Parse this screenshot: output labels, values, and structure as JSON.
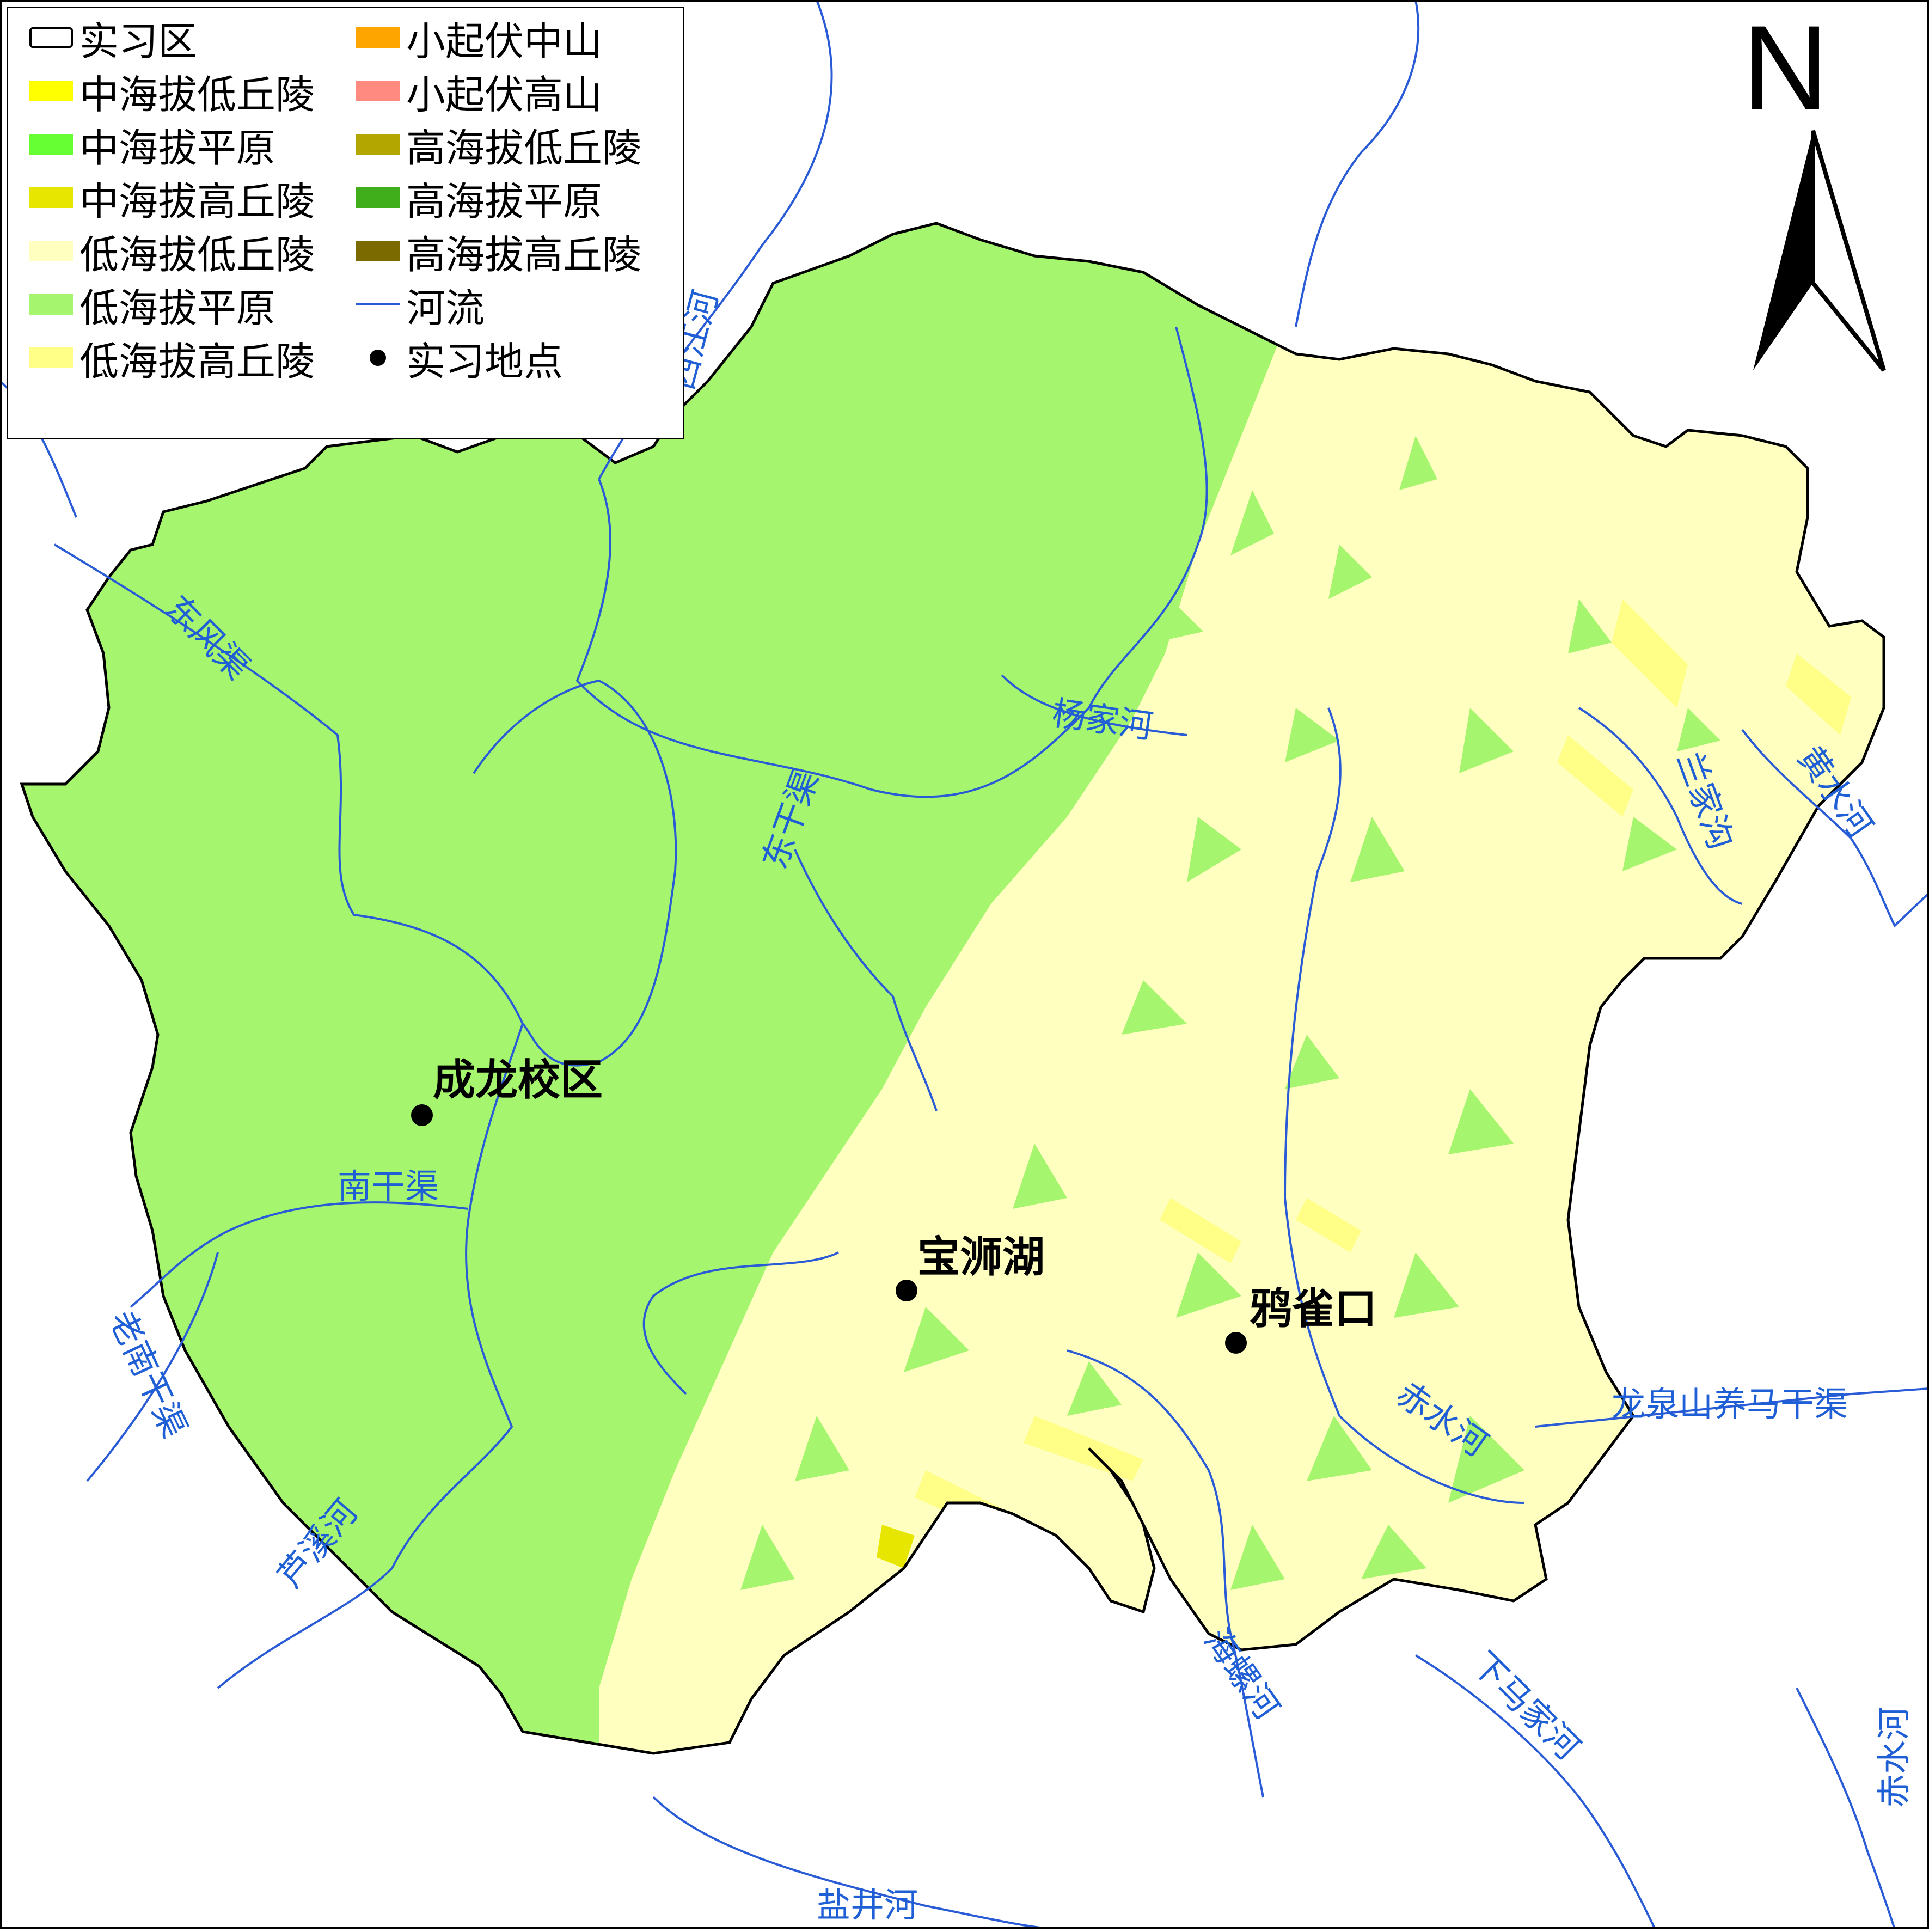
{
  "legend": {
    "items": [
      {
        "label": "实习区",
        "kind": "outline",
        "color": "#ffffff"
      },
      {
        "label": "中海拔低丘陵",
        "kind": "fill",
        "color": "#ffff00"
      },
      {
        "label": "中海拔平原",
        "kind": "fill",
        "color": "#66ff33"
      },
      {
        "label": "中海拔高丘陵",
        "kind": "fill",
        "color": "#e6e600"
      },
      {
        "label": "低海拔低丘陵",
        "kind": "fill",
        "color": "#ffffc0"
      },
      {
        "label": "低海拔平原",
        "kind": "fill",
        "color": "#a6f56e"
      },
      {
        "label": "低海拔高丘陵",
        "kind": "fill",
        "color": "#ffff88"
      },
      {
        "label": "小起伏中山",
        "kind": "fill",
        "color": "#ffa500"
      },
      {
        "label": "小起伏高山",
        "kind": "fill",
        "color": "#ff8a80"
      },
      {
        "label": "高海拔低丘陵",
        "kind": "fill",
        "color": "#b3a600"
      },
      {
        "label": "高海拔平原",
        "kind": "fill",
        "color": "#3fae1a"
      },
      {
        "label": "高海拔高丘陵",
        "kind": "fill",
        "color": "#7a6a00"
      },
      {
        "label": "河流",
        "kind": "line",
        "color": "#2a5bd7"
      },
      {
        "label": "实习地点",
        "kind": "dot",
        "color": "#000000"
      }
    ]
  },
  "north_arrow": {
    "label": "N"
  },
  "places": [
    {
      "name": "成龙校区"
    },
    {
      "name": "宝浉湖"
    },
    {
      "name": "鸦雀口"
    }
  ],
  "rivers": [
    {
      "name": "西江河"
    },
    {
      "name": "东风渠"
    },
    {
      "name": "杨家河"
    },
    {
      "name": "东干渠"
    },
    {
      "name": "南干渠"
    },
    {
      "name": "老南干渠"
    },
    {
      "name": "芦溪河"
    },
    {
      "name": "兰家沟"
    },
    {
      "name": "黄水河"
    },
    {
      "name": "赤水河"
    },
    {
      "name": "龙泉山养马干渠"
    },
    {
      "name": "海螺河"
    },
    {
      "name": "下马家河"
    },
    {
      "name": "盐井河"
    },
    {
      "name": "赤水河"
    }
  ],
  "colors": {
    "low_plain": "#a6f56e",
    "low_low_hill": "#ffffc0",
    "low_high_hill": "#ffff88",
    "mid_high_hill": "#e6e600",
    "river": "#2a5bd7",
    "river_label": "#1f5fd6",
    "boundary": "#000000"
  }
}
